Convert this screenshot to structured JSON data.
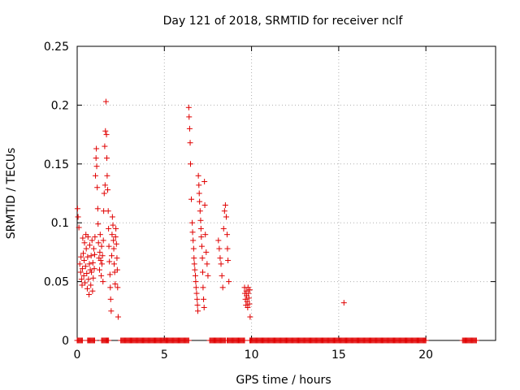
{
  "chart_data": {
    "type": "scatter",
    "title": "Day 121 of 2018, SRMTID for receiver nclf",
    "xlabel": "GPS time / hours",
    "ylabel": "SRMTID / TECUs",
    "xlim": [
      0,
      24
    ],
    "ylim": [
      0,
      0.25
    ],
    "x_ticks": [
      0,
      5,
      10,
      15,
      20
    ],
    "y_ticks": [
      0,
      0.05,
      0.1,
      0.15,
      0.2,
      0.25
    ],
    "x_tick_labels": [
      "0",
      "5",
      "10",
      "15",
      "20"
    ],
    "y_tick_labels": [
      "0",
      "0.05",
      "0.1",
      "0.15",
      "0.2",
      "0.25"
    ],
    "grid": true,
    "marker": "+",
    "color": "#e00000",
    "series": [
      {
        "name": "",
        "points": [
          [
            0.02,
            0.112
          ],
          [
            0.05,
            0.105
          ],
          [
            0.1,
            0.096
          ],
          [
            0.15,
            0.065
          ],
          [
            0.2,
            0.058
          ],
          [
            0.22,
            0.071
          ],
          [
            0.25,
            0.052
          ],
          [
            0.28,
            0.047
          ],
          [
            0.3,
            0.061
          ],
          [
            0.32,
            0.087
          ],
          [
            0.35,
            0.074
          ],
          [
            0.38,
            0.055
          ],
          [
            0.4,
            0.068
          ],
          [
            0.42,
            0.083
          ],
          [
            0.45,
            0.049
          ],
          [
            0.48,
            0.063
          ],
          [
            0.5,
            0.09
          ],
          [
            0.52,
            0.078
          ],
          [
            0.55,
            0.057
          ],
          [
            0.58,
            0.044
          ],
          [
            0.6,
            0.071
          ],
          [
            0.62,
            0.088
          ],
          [
            0.65,
            0.052
          ],
          [
            0.68,
            0.039
          ],
          [
            0.7,
            0.065
          ],
          [
            0.72,
            0.081
          ],
          [
            0.75,
            0.06
          ],
          [
            0.78,
            0.047
          ],
          [
            0.8,
            0.072
          ],
          [
            0.82,
            0.058
          ],
          [
            0.85,
            0.085
          ],
          [
            0.88,
            0.042
          ],
          [
            0.9,
            0.066
          ],
          [
            0.92,
            0.053
          ],
          [
            0.95,
            0.078
          ],
          [
            0.98,
            0.061
          ],
          [
            1.0,
            0.073
          ],
          [
            1.02,
            0.088
          ],
          [
            1.05,
            0.14
          ],
          [
            1.08,
            0.155
          ],
          [
            1.1,
            0.163
          ],
          [
            1.12,
            0.148
          ],
          [
            1.15,
            0.13
          ],
          [
            1.18,
            0.112
          ],
          [
            1.2,
            0.099
          ],
          [
            1.22,
            0.083
          ],
          [
            1.25,
            0.07
          ],
          [
            1.28,
            0.06
          ],
          [
            1.3,
            0.075
          ],
          [
            1.32,
            0.09
          ],
          [
            1.35,
            0.068
          ],
          [
            1.38,
            0.055
          ],
          [
            1.4,
            0.08
          ],
          [
            1.42,
            0.065
          ],
          [
            1.45,
            0.072
          ],
          [
            1.48,
            0.05
          ],
          [
            1.5,
            0.085
          ],
          [
            1.52,
            0.11
          ],
          [
            1.55,
            0.125
          ],
          [
            1.58,
            0.165
          ],
          [
            1.6,
            0.132
          ],
          [
            1.62,
            0.178
          ],
          [
            1.65,
            0.203
          ],
          [
            1.68,
            0.175
          ],
          [
            1.7,
            0.155
          ],
          [
            1.72,
            0.14
          ],
          [
            1.75,
            0.128
          ],
          [
            1.78,
            0.11
          ],
          [
            1.8,
            0.095
          ],
          [
            1.82,
            0.08
          ],
          [
            1.85,
            0.067
          ],
          [
            1.88,
            0.056
          ],
          [
            1.9,
            0.045
          ],
          [
            1.92,
            0.035
          ],
          [
            1.95,
            0.025
          ],
          [
            1.98,
            0.072
          ],
          [
            2.0,
            0.09
          ],
          [
            2.02,
            0.105
          ],
          [
            2.05,
            0.098
          ],
          [
            2.08,
            0.085
          ],
          [
            2.1,
            0.078
          ],
          [
            2.12,
            0.065
          ],
          [
            2.15,
            0.058
          ],
          [
            2.18,
            0.048
          ],
          [
            2.2,
            0.088
          ],
          [
            2.22,
            0.095
          ],
          [
            2.25,
            0.082
          ],
          [
            2.28,
            0.07
          ],
          [
            2.3,
            0.06
          ],
          [
            2.32,
            0.045
          ],
          [
            2.35,
            0.02
          ],
          [
            6.4,
            0.198
          ],
          [
            6.42,
            0.19
          ],
          [
            6.45,
            0.18
          ],
          [
            6.48,
            0.168
          ],
          [
            6.5,
            0.15
          ],
          [
            6.55,
            0.12
          ],
          [
            6.6,
            0.1
          ],
          [
            6.62,
            0.092
          ],
          [
            6.65,
            0.085
          ],
          [
            6.68,
            0.078
          ],
          [
            6.7,
            0.07
          ],
          [
            6.72,
            0.065
          ],
          [
            6.75,
            0.06
          ],
          [
            6.78,
            0.055
          ],
          [
            6.8,
            0.05
          ],
          [
            6.82,
            0.045
          ],
          [
            6.85,
            0.04
          ],
          [
            6.88,
            0.035
          ],
          [
            6.9,
            0.03
          ],
          [
            6.92,
            0.025
          ],
          [
            6.95,
            0.14
          ],
          [
            6.98,
            0.132
          ],
          [
            7.0,
            0.125
          ],
          [
            7.02,
            0.118
          ],
          [
            7.05,
            0.11
          ],
          [
            7.08,
            0.102
          ],
          [
            7.1,
            0.095
          ],
          [
            7.12,
            0.088
          ],
          [
            7.15,
            0.08
          ],
          [
            7.18,
            0.07
          ],
          [
            7.2,
            0.058
          ],
          [
            7.22,
            0.045
          ],
          [
            7.25,
            0.035
          ],
          [
            7.28,
            0.028
          ],
          [
            7.3,
            0.135
          ],
          [
            7.32,
            0.115
          ],
          [
            7.35,
            0.09
          ],
          [
            7.4,
            0.075
          ],
          [
            7.45,
            0.065
          ],
          [
            7.5,
            0.055
          ],
          [
            8.1,
            0.085
          ],
          [
            8.15,
            0.078
          ],
          [
            8.2,
            0.07
          ],
          [
            8.25,
            0.065
          ],
          [
            8.3,
            0.055
          ],
          [
            8.35,
            0.045
          ],
          [
            8.4,
            0.095
          ],
          [
            8.45,
            0.11
          ],
          [
            8.5,
            0.115
          ],
          [
            8.55,
            0.105
          ],
          [
            8.6,
            0.09
          ],
          [
            8.62,
            0.078
          ],
          [
            8.65,
            0.068
          ],
          [
            8.7,
            0.05
          ],
          [
            9.6,
            0.045
          ],
          [
            9.62,
            0.04
          ],
          [
            9.65,
            0.035
          ],
          [
            9.68,
            0.03
          ],
          [
            9.7,
            0.042
          ],
          [
            9.72,
            0.038
          ],
          [
            9.75,
            0.033
          ],
          [
            9.78,
            0.028
          ],
          [
            9.8,
            0.045
          ],
          [
            9.82,
            0.04
          ],
          [
            9.85,
            0.036
          ],
          [
            9.88,
            0.031
          ],
          [
            9.9,
            0.043
          ],
          [
            9.92,
            0.02
          ],
          [
            15.3,
            0.032
          ]
        ]
      }
    ],
    "zero_value_intervals": [
      [
        0.0,
        0.3
      ],
      [
        0.6,
        1.0
      ],
      [
        1.4,
        1.8
      ],
      [
        2.5,
        6.4
      ],
      [
        7.6,
        8.5
      ],
      [
        8.6,
        9.6
      ],
      [
        9.9,
        20.0
      ],
      [
        22.1,
        22.9
      ]
    ]
  }
}
